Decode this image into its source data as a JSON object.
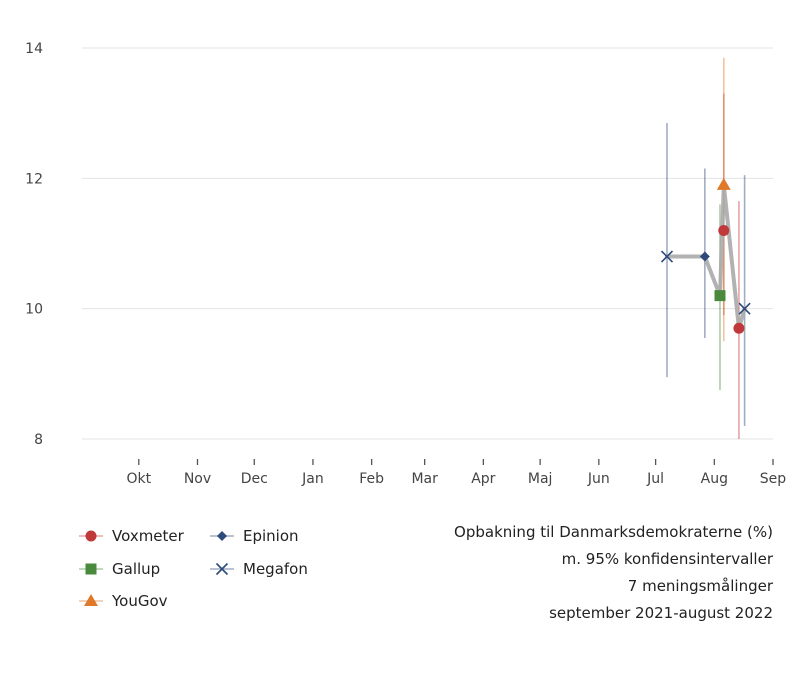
{
  "chart_data": {
    "type": "line",
    "x_type": "date",
    "xlim": [
      "2021-09-01",
      "2022-09-01"
    ],
    "ylim": [
      8,
      14
    ],
    "y_ticks": [
      8,
      10,
      12,
      14
    ],
    "x_ticks": [
      {
        "date": "2021-10-01",
        "label": "Okt"
      },
      {
        "date": "2021-11-01",
        "label": "Nov"
      },
      {
        "date": "2021-12-01",
        "label": "Dec"
      },
      {
        "date": "2022-01-01",
        "label": "Jan"
      },
      {
        "date": "2022-02-01",
        "label": "Feb"
      },
      {
        "date": "2022-03-01",
        "label": "Mar"
      },
      {
        "date": "2022-04-01",
        "label": "Apr"
      },
      {
        "date": "2022-05-01",
        "label": "Maj"
      },
      {
        "date": "2022-06-01",
        "label": "Jun"
      },
      {
        "date": "2022-07-01",
        "label": "Jul"
      },
      {
        "date": "2022-08-01",
        "label": "Aug"
      },
      {
        "date": "2022-09-01",
        "label": "Sep"
      }
    ],
    "grid": true,
    "trend_color": "#aaaaaa",
    "series": [
      {
        "name": "Voxmeter",
        "color": "#c0383a",
        "marker": "circle",
        "points": [
          {
            "x": "2022-08-06",
            "y": 11.2,
            "lo": 9.9,
            "hi": 13.3
          },
          {
            "x": "2022-08-14",
            "y": 9.7,
            "lo": 8.0,
            "hi": 11.65
          }
        ]
      },
      {
        "name": "Gallup",
        "color": "#4a8a3c",
        "marker": "square",
        "points": [
          {
            "x": "2022-08-04",
            "y": 10.2,
            "lo": 8.75,
            "hi": 11.6
          }
        ]
      },
      {
        "name": "YouGov",
        "color": "#e07a2a",
        "marker": "triangle",
        "points": [
          {
            "x": "2022-08-06",
            "y": 11.9,
            "lo": 9.5,
            "hi": 13.85
          }
        ]
      },
      {
        "name": "Epinion",
        "color": "#2e4a7a",
        "marker": "diamond",
        "points": [
          {
            "x": "2022-07-27",
            "y": 10.8,
            "lo": 9.55,
            "hi": 12.15
          }
        ]
      },
      {
        "name": "Megafon",
        "color": "#2e4a7a",
        "marker": "x",
        "points": [
          {
            "x": "2022-07-07",
            "y": 10.8,
            "lo": 8.95,
            "hi": 12.85
          },
          {
            "x": "2022-08-17",
            "y": 10.0,
            "lo": 8.2,
            "hi": 12.05
          }
        ]
      }
    ],
    "trend": [
      {
        "x": "2022-07-07",
        "y": 10.8
      },
      {
        "x": "2022-07-27",
        "y": 10.8
      },
      {
        "x": "2022-08-04",
        "y": 10.2
      },
      {
        "x": "2022-08-06",
        "y": 11.9
      },
      {
        "x": "2022-08-14",
        "y": 9.7
      },
      {
        "x": "2022-08-17",
        "y": 10.0
      }
    ],
    "legend_position": "bottom-left",
    "caption": [
      "Opbakning til Danmarksdemokraterne (%)",
      "m. 95% konfidensintervaller",
      "7 meningsmålinger",
      "september 2021-august 2022"
    ]
  }
}
